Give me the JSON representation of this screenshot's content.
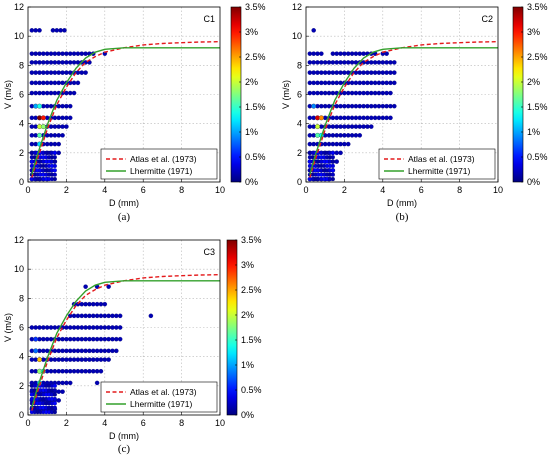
{
  "chart_data": [
    {
      "type": "scatter",
      "title": "",
      "corner_label": "C1",
      "panel_label": "(a)",
      "xlabel": "D (mm)",
      "ylabel": "V (m/s)",
      "xlim": [
        0,
        10
      ],
      "ylim": [
        0,
        12
      ],
      "xticks": [
        "0",
        "2",
        "4",
        "6",
        "8",
        "10"
      ],
      "yticks": [
        "0",
        "2",
        "4",
        "6",
        "8",
        "10",
        "12"
      ],
      "grid": true,
      "legend_position": "bottom-right",
      "colorbar": {
        "ticks": [
          "0%",
          "0.5%",
          "1%",
          "1.5%",
          "2%",
          "2.5%",
          "3%",
          "3.5%"
        ],
        "range": [
          0,
          3.5
        ],
        "colormap": "jet"
      },
      "series": [
        {
          "name": "Atlas et al. (1973)",
          "style": "dashed",
          "color": "#e41a1c",
          "x": [
            0.2,
            0.5,
            1,
            1.5,
            2,
            2.5,
            3,
            3.5,
            4,
            5,
            6,
            7,
            8,
            9,
            10
          ],
          "y": [
            0.3,
            1.6,
            3.6,
            5.3,
            6.5,
            7.5,
            8.2,
            8.6,
            8.9,
            9.2,
            9.4,
            9.5,
            9.55,
            9.6,
            9.62
          ]
        },
        {
          "name": "Lhermitte (1971)",
          "style": "solid",
          "color": "#33a02c",
          "x": [
            0.2,
            0.5,
            1,
            1.5,
            2,
            2.5,
            3,
            3.5,
            4,
            4.5,
            5,
            6,
            7,
            8,
            9,
            10
          ],
          "y": [
            0.5,
            1.9,
            3.9,
            5.6,
            6.8,
            7.8,
            8.5,
            8.9,
            9.1,
            9.15,
            9.2,
            9.2,
            9.2,
            9.2,
            9.2,
            9.2
          ]
        }
      ],
      "scatter_rows": [
        {
          "y": 10.4,
          "x_min": 0.2,
          "x_max": 0.6,
          "extra_x": [
            1.3,
            1.5,
            1.7,
            1.9
          ]
        },
        {
          "y": 8.8,
          "x_min": 0.2,
          "x_max": 3.4,
          "extra_x": [
            4.0
          ]
        },
        {
          "y": 8.2,
          "x_min": 0.2,
          "x_max": 3.2,
          "extra_x": []
        },
        {
          "y": 7.5,
          "x_min": 0.2,
          "x_max": 3.0,
          "extra_x": []
        },
        {
          "y": 6.8,
          "x_min": 0.2,
          "x_max": 2.6,
          "extra_x": []
        },
        {
          "y": 6.1,
          "x_min": 0.2,
          "x_max": 2.4,
          "extra_x": []
        },
        {
          "y": 5.2,
          "x_min": 0.2,
          "x_max": 2.2,
          "extra_x": []
        },
        {
          "y": 4.4,
          "x_min": 0.2,
          "x_max": 2.2,
          "extra_x": []
        },
        {
          "y": 3.8,
          "x_min": 0.2,
          "x_max": 2.0,
          "extra_x": []
        },
        {
          "y": 3.2,
          "x_min": 0.2,
          "x_max": 1.8,
          "extra_x": []
        },
        {
          "y": 2.6,
          "x_min": 0.2,
          "x_max": 1.6,
          "extra_x": []
        },
        {
          "y": 2.0,
          "x_min": 0.2,
          "x_max": 1.6,
          "extra_x": []
        },
        {
          "y": 1.4,
          "x_min": 0.2,
          "x_max": 1.4,
          "extra_x": []
        },
        {
          "y": 0.8,
          "x_min": 0.2,
          "x_max": 1.2,
          "extra_x": []
        },
        {
          "y": 0.2,
          "x_min": 0.2,
          "x_max": 1.0,
          "extra_x": []
        }
      ],
      "hotspots": [
        {
          "x": 0.6,
          "y": 4.4,
          "value": 3.5
        },
        {
          "x": 0.8,
          "y": 4.4,
          "value": 3.0
        },
        {
          "x": 0.6,
          "y": 3.8,
          "value": 2.0
        },
        {
          "x": 0.8,
          "y": 3.8,
          "value": 1.8
        },
        {
          "x": 0.6,
          "y": 3.2,
          "value": 1.6
        },
        {
          "x": 0.6,
          "y": 2.6,
          "value": 1.2
        },
        {
          "x": 0.4,
          "y": 5.2,
          "value": 1.0
        },
        {
          "x": 0.6,
          "y": 5.2,
          "value": 1.4
        }
      ]
    },
    {
      "type": "scatter",
      "title": "",
      "corner_label": "C2",
      "panel_label": "(b)",
      "xlabel": "D (mm)",
      "ylabel": "V (m/s)",
      "xlim": [
        0,
        10
      ],
      "ylim": [
        0,
        12
      ],
      "xticks": [
        "0",
        "2",
        "4",
        "6",
        "8",
        "10"
      ],
      "yticks": [
        "0",
        "2",
        "4",
        "6",
        "8",
        "10",
        "12"
      ],
      "grid": true,
      "legend_position": "bottom-right",
      "colorbar": {
        "ticks": [
          "0%",
          "0.5%",
          "1%",
          "1.5%",
          "2%",
          "2.5%",
          "3%",
          "3.5%"
        ],
        "range": [
          0,
          3.5
        ],
        "colormap": "jet"
      },
      "series": [
        {
          "name": "Atlas et al. (1973)",
          "style": "dashed",
          "color": "#e41a1c",
          "x": [
            0.2,
            0.5,
            1,
            1.5,
            2,
            2.5,
            3,
            3.5,
            4,
            5,
            6,
            7,
            8,
            9,
            10
          ],
          "y": [
            0.3,
            1.6,
            3.6,
            5.3,
            6.5,
            7.5,
            8.2,
            8.6,
            8.9,
            9.2,
            9.4,
            9.5,
            9.55,
            9.6,
            9.62
          ]
        },
        {
          "name": "Lhermitte (1971)",
          "style": "solid",
          "color": "#33a02c",
          "x": [
            0.2,
            0.5,
            1,
            1.5,
            2,
            2.5,
            3,
            3.5,
            4,
            4.5,
            5,
            6,
            7,
            8,
            9,
            10
          ],
          "y": [
            0.5,
            1.9,
            3.9,
            5.6,
            6.8,
            7.8,
            8.5,
            8.9,
            9.1,
            9.15,
            9.2,
            9.2,
            9.2,
            9.2,
            9.2,
            9.2
          ]
        }
      ],
      "scatter_rows": [
        {
          "y": 10.4,
          "x_min": 0.4,
          "x_max": 0.4,
          "extra_x": []
        },
        {
          "y": 8.8,
          "x_min": 0.2,
          "x_max": 0.8,
          "extra_x": [
            1.4,
            1.6,
            1.8,
            2.0,
            2.2,
            2.4,
            2.6,
            2.8,
            3.0,
            3.2,
            3.4,
            3.6,
            4.0,
            4.2
          ]
        },
        {
          "y": 8.2,
          "x_min": 0.2,
          "x_max": 4.6,
          "extra_x": []
        },
        {
          "y": 7.5,
          "x_min": 0.2,
          "x_max": 4.6,
          "extra_x": []
        },
        {
          "y": 6.8,
          "x_min": 0.2,
          "x_max": 4.6,
          "extra_x": []
        },
        {
          "y": 6.1,
          "x_min": 0.2,
          "x_max": 4.4,
          "extra_x": []
        },
        {
          "y": 5.2,
          "x_min": 0.2,
          "x_max": 4.6,
          "extra_x": []
        },
        {
          "y": 4.4,
          "x_min": 0.2,
          "x_max": 4.4,
          "extra_x": []
        },
        {
          "y": 3.8,
          "x_min": 0.2,
          "x_max": 3.4,
          "extra_x": []
        },
        {
          "y": 3.2,
          "x_min": 0.2,
          "x_max": 2.8,
          "extra_x": []
        },
        {
          "y": 2.6,
          "x_min": 0.2,
          "x_max": 2.2,
          "extra_x": []
        },
        {
          "y": 2.0,
          "x_min": 0.2,
          "x_max": 1.8,
          "extra_x": []
        },
        {
          "y": 1.4,
          "x_min": 0.2,
          "x_max": 1.6,
          "extra_x": []
        },
        {
          "y": 0.8,
          "x_min": 0.2,
          "x_max": 1.4,
          "extra_x": []
        },
        {
          "y": 0.2,
          "x_min": 0.2,
          "x_max": 1.2,
          "extra_x": []
        }
      ],
      "hotspots": [
        {
          "x": 0.6,
          "y": 4.4,
          "value": 3.2
        },
        {
          "x": 0.8,
          "y": 4.4,
          "value": 2.6
        },
        {
          "x": 0.6,
          "y": 3.8,
          "value": 2.0
        },
        {
          "x": 0.6,
          "y": 3.2,
          "value": 1.6
        },
        {
          "x": 0.8,
          "y": 3.2,
          "value": 1.3
        },
        {
          "x": 0.4,
          "y": 5.2,
          "value": 0.9
        }
      ]
    },
    {
      "type": "scatter",
      "title": "",
      "corner_label": "C3",
      "panel_label": "(c)",
      "xlabel": "D (mm)",
      "ylabel": "V (m/s)",
      "xlim": [
        0,
        10
      ],
      "ylim": [
        0,
        12
      ],
      "xticks": [
        "0",
        "2",
        "4",
        "6",
        "8",
        "10"
      ],
      "yticks": [
        "0",
        "2",
        "4",
        "6",
        "8",
        "10",
        "12"
      ],
      "grid": true,
      "legend_position": "bottom-right",
      "colorbar": {
        "ticks": [
          "0%",
          "0.5%",
          "1%",
          "1.5%",
          "2%",
          "2.5%",
          "3%",
          "3.5%"
        ],
        "range": [
          0,
          3.5
        ],
        "colormap": "jet"
      },
      "series": [
        {
          "name": "Atlas et al. (1973)",
          "style": "dashed",
          "color": "#e41a1c",
          "x": [
            0.2,
            0.5,
            1,
            1.5,
            2,
            2.5,
            3,
            3.5,
            4,
            5,
            6,
            7,
            8,
            9,
            10
          ],
          "y": [
            0.3,
            1.6,
            3.6,
            5.3,
            6.5,
            7.5,
            8.2,
            8.6,
            8.9,
            9.2,
            9.4,
            9.5,
            9.55,
            9.6,
            9.62
          ]
        },
        {
          "name": "Lhermitte (1971)",
          "style": "solid",
          "color": "#33a02c",
          "x": [
            0.2,
            0.5,
            1,
            1.5,
            2,
            2.5,
            3,
            3.5,
            4,
            4.5,
            5,
            6,
            7,
            8,
            9,
            10
          ],
          "y": [
            0.5,
            1.9,
            3.9,
            5.6,
            6.8,
            7.8,
            8.5,
            8.9,
            9.1,
            9.15,
            9.2,
            9.2,
            9.2,
            9.2,
            9.2,
            9.2
          ]
        }
      ],
      "scatter_rows": [
        {
          "y": 8.8,
          "x_min": 3.0,
          "x_max": 3.0,
          "extra_x": [
            3.6,
            4.2
          ]
        },
        {
          "y": 7.6,
          "x_min": 2.4,
          "x_max": 4.0,
          "extra_x": []
        },
        {
          "y": 6.8,
          "x_min": 2.2,
          "x_max": 4.8,
          "extra_x": [
            6.4
          ]
        },
        {
          "y": 6.0,
          "x_min": 0.2,
          "x_max": 4.8,
          "extra_x": []
        },
        {
          "y": 5.2,
          "x_min": 0.2,
          "x_max": 4.8,
          "extra_x": []
        },
        {
          "y": 4.4,
          "x_min": 0.2,
          "x_max": 4.6,
          "extra_x": []
        },
        {
          "y": 3.8,
          "x_min": 0.2,
          "x_max": 4.2,
          "extra_x": []
        },
        {
          "y": 3.0,
          "x_min": 0.2,
          "x_max": 3.8,
          "extra_x": []
        },
        {
          "y": 2.2,
          "x_min": 0.2,
          "x_max": 2.2,
          "extra_x": [
            3.6
          ]
        },
        {
          "y": 1.6,
          "x_min": 0.2,
          "x_max": 1.8,
          "extra_x": []
        },
        {
          "y": 1.0,
          "x_min": 0.2,
          "x_max": 1.6,
          "extra_x": []
        },
        {
          "y": 0.4,
          "x_min": 0.2,
          "x_max": 1.4,
          "extra_x": []
        }
      ],
      "hotspots": [
        {
          "x": 0.6,
          "y": 3.8,
          "value": 2.4
        },
        {
          "x": 0.6,
          "y": 3.0,
          "value": 1.8
        },
        {
          "x": 0.8,
          "y": 3.0,
          "value": 1.4
        },
        {
          "x": 0.6,
          "y": 2.2,
          "value": 1.2
        },
        {
          "x": 0.4,
          "y": 4.4,
          "value": 0.8
        },
        {
          "x": 0.4,
          "y": 5.2,
          "value": 0.6
        }
      ]
    }
  ]
}
